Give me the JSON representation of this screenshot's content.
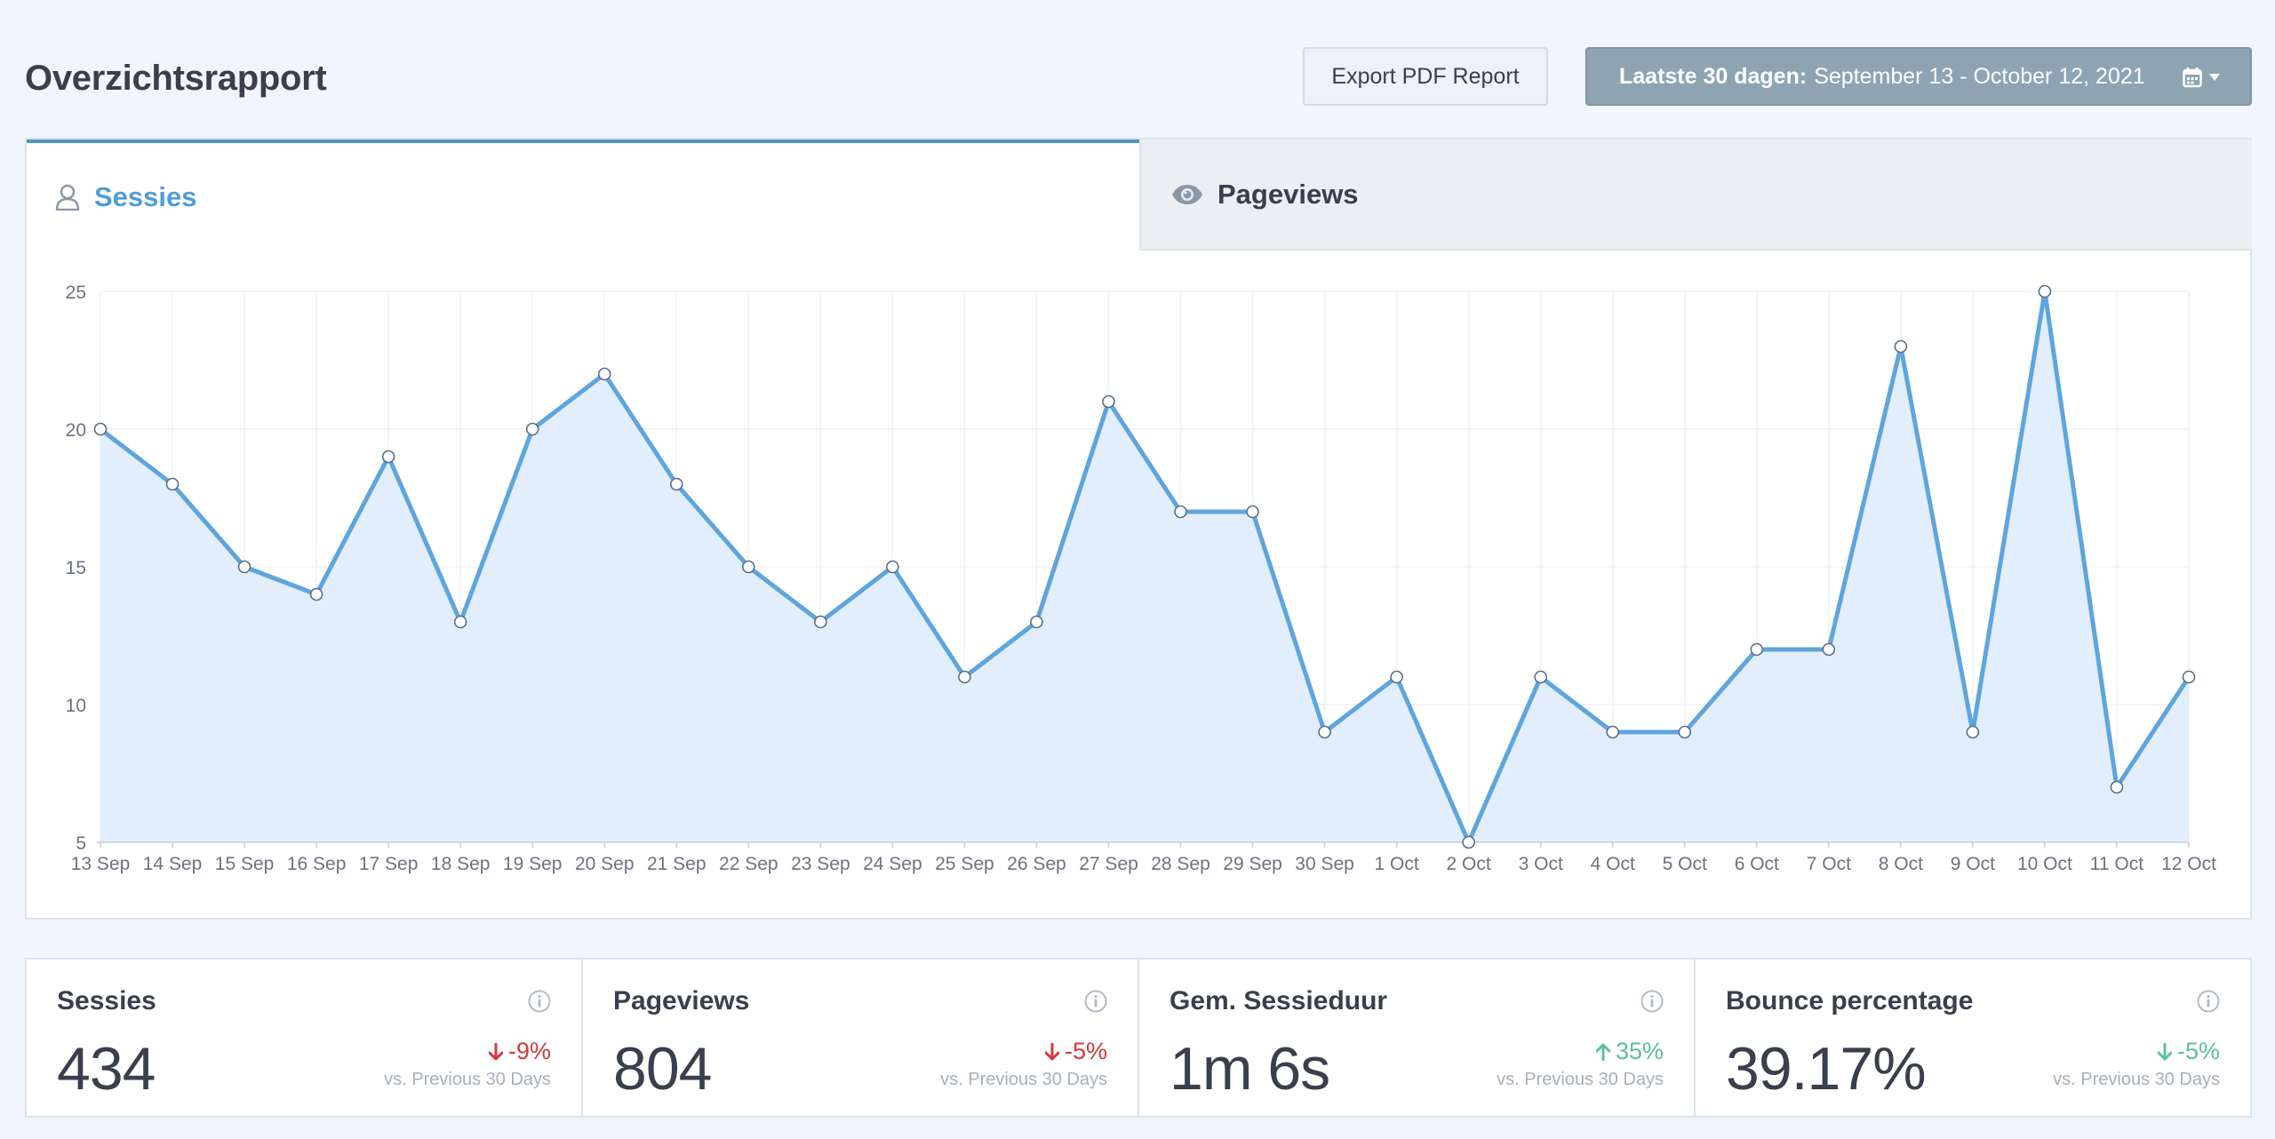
{
  "header": {
    "title": "Overzichtsrapport",
    "export_label": "Export PDF Report",
    "date_range_label": "Laatste 30 dagen:",
    "date_range_value": "September 13 - October 12, 2021"
  },
  "tabs": [
    {
      "label": "Sessies",
      "icon": "user-icon",
      "active": true
    },
    {
      "label": "Pageviews",
      "icon": "eye-icon",
      "active": false
    }
  ],
  "colors": {
    "accent": "#509cd6",
    "line": "#5fa5dd",
    "area": "#e2eefb",
    "negative": "#d4393d",
    "positive": "#5cc0a0"
  },
  "chart_data": {
    "type": "area",
    "x": [
      "13 Sep",
      "14 Sep",
      "15 Sep",
      "16 Sep",
      "17 Sep",
      "18 Sep",
      "19 Sep",
      "20 Sep",
      "21 Sep",
      "22 Sep",
      "23 Sep",
      "24 Sep",
      "25 Sep",
      "26 Sep",
      "27 Sep",
      "28 Sep",
      "29 Sep",
      "30 Sep",
      "1 Oct",
      "2 Oct",
      "3 Oct",
      "4 Oct",
      "5 Oct",
      "6 Oct",
      "7 Oct",
      "8 Oct",
      "9 Oct",
      "10 Oct",
      "11 Oct",
      "12 Oct"
    ],
    "series": [
      {
        "values": [
          20,
          18,
          15,
          14,
          19,
          13,
          20,
          22,
          18,
          15,
          13,
          15,
          11,
          13,
          21,
          17,
          17,
          9,
          11,
          5,
          11,
          9,
          9,
          12,
          12,
          23,
          9,
          25,
          7,
          11
        ]
      }
    ],
    "yticks": [
      5,
      10,
      15,
      20,
      25
    ],
    "ylim": [
      5,
      25
    ],
    "grid": true
  },
  "kpis": [
    {
      "title": "Sessies",
      "value": "434",
      "change": "-9%",
      "direction": "down",
      "tone": "negative",
      "sub": "vs. Previous 30 Days"
    },
    {
      "title": "Pageviews",
      "value": "804",
      "change": "-5%",
      "direction": "down",
      "tone": "negative",
      "sub": "vs. Previous 30 Days"
    },
    {
      "title": "Gem. Sessieduur",
      "value": "1m 6s",
      "change": "35%",
      "direction": "up",
      "tone": "positive",
      "sub": "vs. Previous 30 Days"
    },
    {
      "title": "Bounce percentage",
      "value": "39.17%",
      "change": "-5%",
      "direction": "down",
      "tone": "positive",
      "sub": "vs. Previous 30 Days"
    }
  ]
}
